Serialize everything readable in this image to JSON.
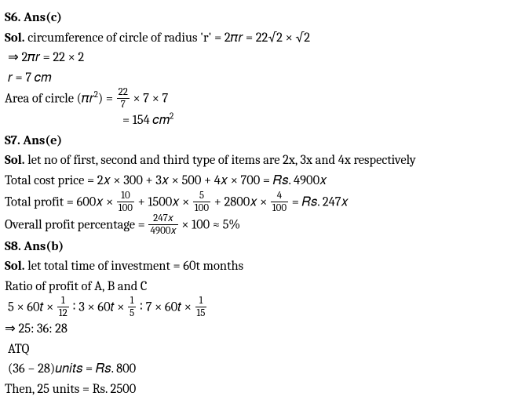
{
  "s6": {
    "header": "S6. Ans(c)",
    "sol_label": "Sol. ",
    "line1a": "circumference of circle of radius 'r' = 2𝜋𝑟 = 22√2 × √2",
    "line2": "⇒ 2𝜋𝑟 = 22 × 2",
    "line3": "𝑟 = 7 𝑐𝑚",
    "line4a": "Area of circle (𝜋𝑟",
    "line4sup": "2",
    "line4b": ") = ",
    "frac1_num": "22",
    "frac1_den": "7",
    "line4c": " × 7 × 7",
    "line5a": "= 154 𝑐𝑚",
    "line5sup": "2"
  },
  "s7": {
    "header": "S7. Ans(e)",
    "sol_label": "Sol. ",
    "line1": "let no of first, second and third type of items are 2x, 3x and 4x respectively",
    "line2": "Total cost price = 2𝑥 × 300 + 3𝑥 × 500 + 4𝑥 × 700 = 𝑅𝑠. 4900𝑥",
    "line3a": "Total profit = 600𝑥 × ",
    "frac1_num": "10",
    "frac1_den": "100",
    "line3b": " + 1500𝑥 × ",
    "frac2_num": "5",
    "frac2_den": "100",
    "line3c": " + 2800𝑥 × ",
    "frac3_num": "4",
    "frac3_den": "100",
    "line3d": " = 𝑅𝑠. 247𝑥",
    "line4a": "Overall profit percentage = ",
    "frac4_num": "247𝑥",
    "frac4_den": "4900𝑥",
    "line4b": " × 100 ≈ 5%"
  },
  "s8": {
    "header": "S8. Ans(b)",
    "sol_label": "Sol. ",
    "line1": "let total time of investment = 60t months",
    "line2": "Ratio of profit of A, B and C",
    "line3a": "5 × 60𝑡 × ",
    "frac1_num": "1",
    "frac1_den": "12",
    "line3b": " ∶ 3 × 60𝑡 × ",
    "frac2_num": "1",
    "frac2_den": "5",
    "line3c": " ∶ 7  × 60𝑡 × ",
    "frac3_num": "1",
    "frac3_den": "15",
    "line4": "⇒ 25: 36: 28",
    "line5": "ATQ",
    "line6": "(36 − 28)𝑢𝑛𝑖𝑡𝑠 = 𝑅𝑠. 800",
    "line7": "Then, 25 units = Rs. 2500"
  }
}
